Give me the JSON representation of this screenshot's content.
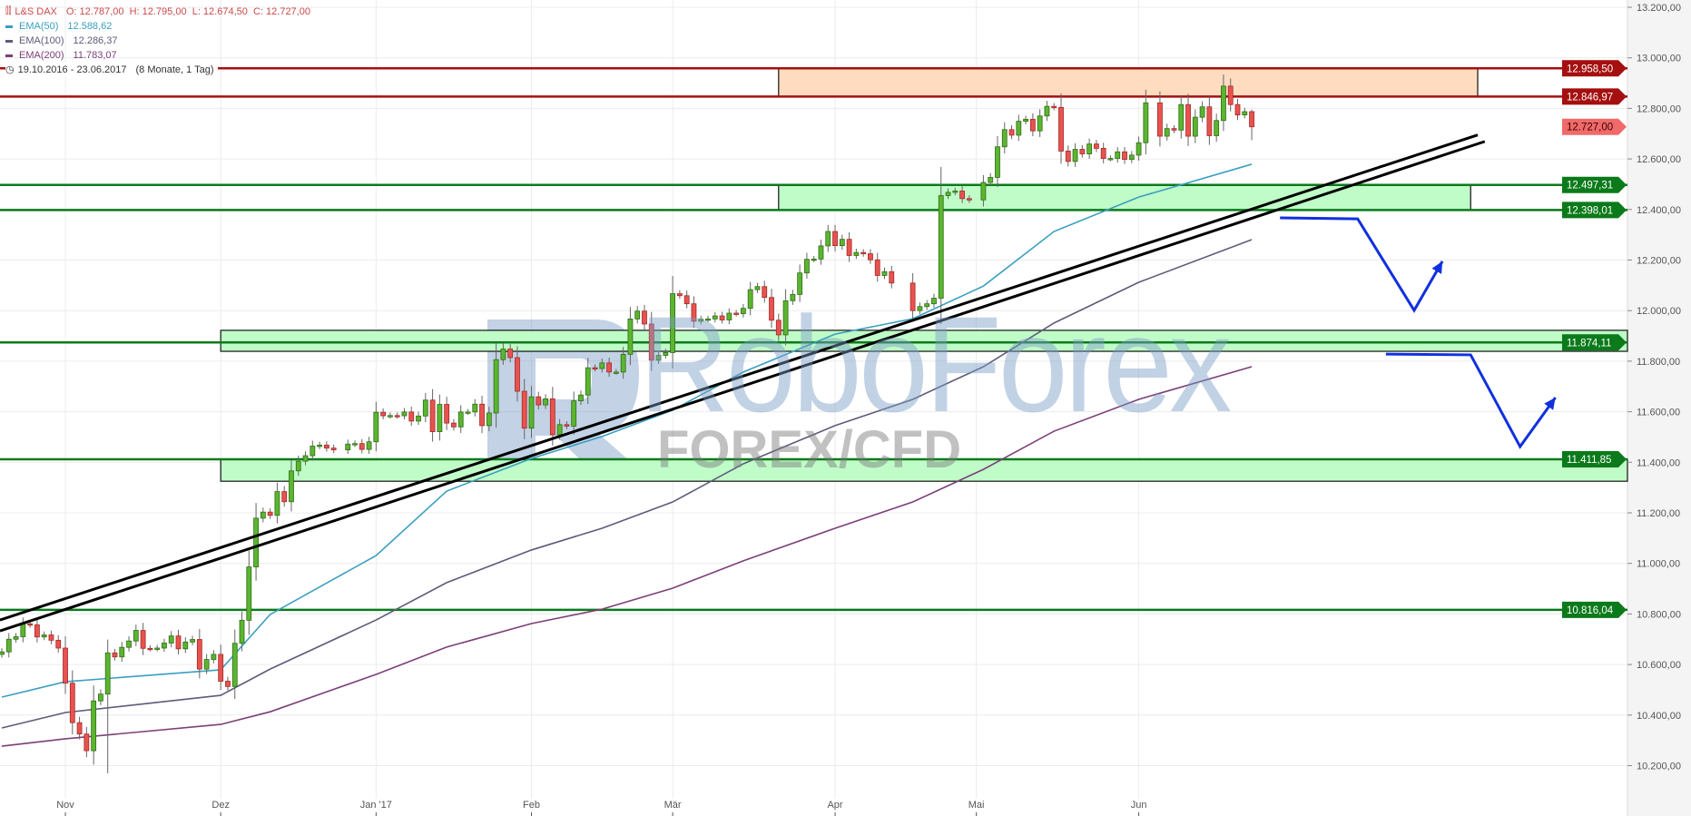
{
  "legend": {
    "instrument": "L&S DAX",
    "ohlc": "O: 12.787,00  H: 12.795,00  L: 12.674,50  C: 12.727,00",
    "range": "19.10.2016 - 23.06.2017",
    "range_note": "(8 Monate, 1 Tag)",
    "title_color": "#cc4a4a"
  },
  "watermark": {
    "brand": "RoboForex",
    "tagline": "FOREX/CFD"
  },
  "chart_data": {
    "type": "candlestick",
    "title": "L&S DAX",
    "ylim": [
      10000,
      13250
    ],
    "yticks": [
      13200,
      13000,
      12800,
      12600,
      12400,
      12200,
      12000,
      11800,
      11600,
      11400,
      11200,
      11000,
      10800,
      10600,
      10400,
      10200
    ],
    "ytick_labels": [
      "13.200,00",
      "13.000,00",
      "12.800,00",
      "12.600,00",
      "12.400,00",
      "12.200,00",
      "12.000,00",
      "11.800,00",
      "11.600,00",
      "11.400,00",
      "11.200,00",
      "11.000,00",
      "10.800,00",
      "10.600,00",
      "10.400,00",
      "10.200,00"
    ],
    "xticks": [
      {
        "date": "2016-11-01",
        "label": "Nov"
      },
      {
        "date": "2016-12-01",
        "label": "Dez"
      },
      {
        "date": "2017-01-02",
        "label": "Jan '17"
      },
      {
        "date": "2017-02-01",
        "label": "Feb"
      },
      {
        "date": "2017-03-01",
        "label": "Mär"
      },
      {
        "date": "2017-04-03",
        "label": "Apr"
      },
      {
        "date": "2017-05-01",
        "label": "Mai"
      },
      {
        "date": "2017-06-01",
        "label": "Jun"
      }
    ],
    "grid": true,
    "colors": {
      "up": "#5cb531",
      "down": "#e8534f"
    },
    "last_candle": {
      "open": 12787.0,
      "high": 12795.0,
      "low": 12674.5,
      "close": 12727.0
    },
    "candles": [
      [
        "2016-10-19",
        10650
      ],
      [
        "2016-10-20",
        10700
      ],
      [
        "2016-10-21",
        10710
      ],
      [
        "2016-10-24",
        10761
      ],
      [
        "2016-10-25",
        10757
      ],
      [
        "2016-10-26",
        10709
      ],
      [
        "2016-10-27",
        10717
      ],
      [
        "2016-10-28",
        10696
      ],
      [
        "2016-10-31",
        10665
      ],
      [
        "2016-11-01",
        10526
      ],
      [
        "2016-11-02",
        10370
      ],
      [
        "2016-11-03",
        10325
      ],
      [
        "2016-11-04",
        10259
      ],
      [
        "2016-11-07",
        10456
      ],
      [
        "2016-11-08",
        10483
      ],
      [
        "2016-11-09",
        10646
      ],
      [
        "2016-11-10",
        10630
      ],
      [
        "2016-11-11",
        10668
      ],
      [
        "2016-11-14",
        10693
      ],
      [
        "2016-11-15",
        10735
      ],
      [
        "2016-11-16",
        10664
      ],
      [
        "2016-11-17",
        10663
      ],
      [
        "2016-11-18",
        10665
      ],
      [
        "2016-11-21",
        10685
      ],
      [
        "2016-11-22",
        10713
      ],
      [
        "2016-11-23",
        10662
      ],
      [
        "2016-11-24",
        10689
      ],
      [
        "2016-11-25",
        10699
      ],
      [
        "2016-11-28",
        10582
      ],
      [
        "2016-11-29",
        10620
      ],
      [
        "2016-11-30",
        10640
      ],
      [
        "2016-12-01",
        10534
      ],
      [
        "2016-12-02",
        10513
      ],
      [
        "2016-12-05",
        10684
      ],
      [
        "2016-12-06",
        10775
      ],
      [
        "2016-12-07",
        10986
      ],
      [
        "2016-12-08",
        11179
      ],
      [
        "2016-12-09",
        11203
      ],
      [
        "2016-12-12",
        11190
      ],
      [
        "2016-12-13",
        11284
      ],
      [
        "2016-12-14",
        11244
      ],
      [
        "2016-12-15",
        11366
      ],
      [
        "2016-12-16",
        11404
      ],
      [
        "2016-12-19",
        11426
      ],
      [
        "2016-12-20",
        11464
      ],
      [
        "2016-12-21",
        11468
      ],
      [
        "2016-12-22",
        11456
      ],
      [
        "2016-12-23",
        11449
      ],
      [
        "2016-12-27",
        11472
      ],
      [
        "2016-12-28",
        11474
      ],
      [
        "2016-12-29",
        11451
      ],
      [
        "2016-12-30",
        11481
      ],
      [
        "2017-01-02",
        11598
      ],
      [
        "2017-01-03",
        11584
      ],
      [
        "2017-01-04",
        11585
      ],
      [
        "2017-01-05",
        11584
      ],
      [
        "2017-01-06",
        11599
      ],
      [
        "2017-01-09",
        11563
      ],
      [
        "2017-01-10",
        11583
      ],
      [
        "2017-01-11",
        11646
      ],
      [
        "2017-01-12",
        11521
      ],
      [
        "2017-01-13",
        11629
      ],
      [
        "2017-01-16",
        11555
      ],
      [
        "2017-01-17",
        11540
      ],
      [
        "2017-01-18",
        11599
      ],
      [
        "2017-01-19",
        11599
      ],
      [
        "2017-01-20",
        11630
      ],
      [
        "2017-01-23",
        11545
      ],
      [
        "2017-01-24",
        11595
      ],
      [
        "2017-01-25",
        11806
      ],
      [
        "2017-01-26",
        11848
      ],
      [
        "2017-01-27",
        11814
      ],
      [
        "2017-01-30",
        11681
      ],
      [
        "2017-01-31",
        11535
      ],
      [
        "2017-02-01",
        11659
      ],
      [
        "2017-02-02",
        11627
      ],
      [
        "2017-02-03",
        11651
      ],
      [
        "2017-02-06",
        11509
      ],
      [
        "2017-02-07",
        11549
      ],
      [
        "2017-02-08",
        11543
      ],
      [
        "2017-02-09",
        11643
      ],
      [
        "2017-02-10",
        11666
      ],
      [
        "2017-02-13",
        11774
      ],
      [
        "2017-02-14",
        11771
      ],
      [
        "2017-02-15",
        11793
      ],
      [
        "2017-02-16",
        11757
      ],
      [
        "2017-02-17",
        11757
      ],
      [
        "2017-02-20",
        11827
      ],
      [
        "2017-02-21",
        11967
      ],
      [
        "2017-02-22",
        11998
      ],
      [
        "2017-02-23",
        11947
      ],
      [
        "2017-02-24",
        11804
      ],
      [
        "2017-02-27",
        11823
      ],
      [
        "2017-02-28",
        11834
      ],
      [
        "2017-03-01",
        12067
      ],
      [
        "2017-03-02",
        12059
      ],
      [
        "2017-03-03",
        12027
      ],
      [
        "2017-03-06",
        11958
      ],
      [
        "2017-03-07",
        11966
      ],
      [
        "2017-03-08",
        11967
      ],
      [
        "2017-03-09",
        11979
      ],
      [
        "2017-03-10",
        11963
      ],
      [
        "2017-03-13",
        11990
      ],
      [
        "2017-03-14",
        11988
      ],
      [
        "2017-03-15",
        12009
      ],
      [
        "2017-03-16",
        12083
      ],
      [
        "2017-03-17",
        12095
      ],
      [
        "2017-03-20",
        12052
      ],
      [
        "2017-03-21",
        11962
      ],
      [
        "2017-03-22",
        11904
      ],
      [
        "2017-03-23",
        12039
      ],
      [
        "2017-03-24",
        12064
      ],
      [
        "2017-03-27",
        12149
      ],
      [
        "2017-03-28",
        12203
      ],
      [
        "2017-03-29",
        12204
      ],
      [
        "2017-03-30",
        12256
      ],
      [
        "2017-03-31",
        12313
      ],
      [
        "2017-04-03",
        12257
      ],
      [
        "2017-04-04",
        12282
      ],
      [
        "2017-04-05",
        12218
      ],
      [
        "2017-04-06",
        12230
      ],
      [
        "2017-04-07",
        12225
      ],
      [
        "2017-04-10",
        12201
      ],
      [
        "2017-04-11",
        12139
      ],
      [
        "2017-04-12",
        12154
      ],
      [
        "2017-04-13",
        12109
      ],
      [
        "2017-04-18",
        12000
      ],
      [
        "2017-04-19",
        12016
      ],
      [
        "2017-04-20",
        12027
      ],
      [
        "2017-04-21",
        12049
      ],
      [
        "2017-04-24",
        12455
      ],
      [
        "2017-04-25",
        12468
      ],
      [
        "2017-04-26",
        12473
      ],
      [
        "2017-04-27",
        12443
      ],
      [
        "2017-04-28",
        12438
      ],
      [
        "2017-05-02",
        12507
      ],
      [
        "2017-05-03",
        12527
      ],
      [
        "2017-05-04",
        12648
      ],
      [
        "2017-05-05",
        12716
      ],
      [
        "2017-05-08",
        12694
      ],
      [
        "2017-05-09",
        12749
      ],
      [
        "2017-05-10",
        12757
      ],
      [
        "2017-05-11",
        12711
      ],
      [
        "2017-05-12",
        12770
      ],
      [
        "2017-05-15",
        12808
      ],
      [
        "2017-05-16",
        12804
      ],
      [
        "2017-05-17",
        12631
      ],
      [
        "2017-05-18",
        12590
      ],
      [
        "2017-05-19",
        12638
      ],
      [
        "2017-05-22",
        12620
      ],
      [
        "2017-05-23",
        12659
      ],
      [
        "2017-05-24",
        12642
      ],
      [
        "2017-05-25",
        12602
      ],
      [
        "2017-05-26",
        12602
      ],
      [
        "2017-05-29",
        12628
      ],
      [
        "2017-05-30",
        12598
      ],
      [
        "2017-05-31",
        12615
      ],
      [
        "2017-06-01",
        12664
      ],
      [
        "2017-06-02",
        12822
      ],
      [
        "2017-06-06",
        12690
      ],
      [
        "2017-06-07",
        12720
      ],
      [
        "2017-06-08",
        12714
      ],
      [
        "2017-06-09",
        12815
      ],
      [
        "2017-06-12",
        12690
      ],
      [
        "2017-06-13",
        12765
      ],
      [
        "2017-06-14",
        12806
      ],
      [
        "2017-06-15",
        12692
      ],
      [
        "2017-06-16",
        12752
      ],
      [
        "2017-06-19",
        12888
      ],
      [
        "2017-06-20",
        12815
      ],
      [
        "2017-06-21",
        12774
      ],
      [
        "2017-06-22",
        12787
      ],
      [
        "2017-06-23",
        12727
      ]
    ],
    "ema": [
      {
        "name": "EMA(50)",
        "value": "12.588,62",
        "color": "#3a9fc0",
        "points": [
          [
            "2016-10-19",
            10471
          ],
          [
            "2016-11-01",
            10532
          ],
          [
            "2016-12-01",
            10579
          ],
          [
            "2016-12-12",
            10798
          ],
          [
            "2017-01-02",
            11031
          ],
          [
            "2017-01-16",
            11286
          ],
          [
            "2017-02-01",
            11415
          ],
          [
            "2017-02-15",
            11502
          ],
          [
            "2017-03-01",
            11606
          ],
          [
            "2017-03-15",
            11757
          ],
          [
            "2017-04-03",
            11907
          ],
          [
            "2017-04-18",
            11968
          ],
          [
            "2017-05-02",
            12097
          ],
          [
            "2017-05-16",
            12313
          ],
          [
            "2017-06-01",
            12449
          ],
          [
            "2017-06-23",
            12579
          ]
        ]
      },
      {
        "name": "EMA(100)",
        "value": "12.286,37",
        "color": "#5c5c7a",
        "points": [
          [
            "2016-10-19",
            10349
          ],
          [
            "2016-11-01",
            10410
          ],
          [
            "2016-12-01",
            10478
          ],
          [
            "2016-12-12",
            10582
          ],
          [
            "2017-01-02",
            10776
          ],
          [
            "2017-01-16",
            10924
          ],
          [
            "2017-02-01",
            11053
          ],
          [
            "2017-02-15",
            11139
          ],
          [
            "2017-03-01",
            11243
          ],
          [
            "2017-03-15",
            11394
          ],
          [
            "2017-04-03",
            11545
          ],
          [
            "2017-04-18",
            11649
          ],
          [
            "2017-05-02",
            11778
          ],
          [
            "2017-05-16",
            11951
          ],
          [
            "2017-06-01",
            12112
          ],
          [
            "2017-06-23",
            12281
          ]
        ]
      },
      {
        "name": "EMA(200)",
        "value": "11.783,07",
        "color": "#7b3f78",
        "points": [
          [
            "2016-10-19",
            10277
          ],
          [
            "2016-11-01",
            10306
          ],
          [
            "2016-12-01",
            10363
          ],
          [
            "2016-12-12",
            10413
          ],
          [
            "2017-01-02",
            10561
          ],
          [
            "2017-01-16",
            10669
          ],
          [
            "2017-02-01",
            10762
          ],
          [
            "2017-02-15",
            10819
          ],
          [
            "2017-03-01",
            10902
          ],
          [
            "2017-03-15",
            11010
          ],
          [
            "2017-04-03",
            11139
          ],
          [
            "2017-04-18",
            11243
          ],
          [
            "2017-05-02",
            11372
          ],
          [
            "2017-05-16",
            11523
          ],
          [
            "2017-06-01",
            11649
          ],
          [
            "2017-06-23",
            11778
          ]
        ]
      }
    ],
    "levels": [
      {
        "value": 12958.5,
        "label": "12.958,50",
        "color": "#a50f0f",
        "text": "#ffffff"
      },
      {
        "value": 12846.97,
        "label": "12.846,97",
        "color": "#a50f0f",
        "text": "#ffffff"
      },
      {
        "value": 12497.31,
        "label": "12.497,31",
        "color": "#0b7a1a",
        "text": "#ffffff"
      },
      {
        "value": 12398.01,
        "label": "12.398,01",
        "color": "#0b7a1a",
        "text": "#ffffff"
      },
      {
        "value": 11874.11,
        "label": "11.874,11",
        "color": "#0b7a1a",
        "text": "#ffffff"
      },
      {
        "value": 11411.85,
        "label": "11.411,85",
        "color": "#0b7a1a",
        "text": "#ffffff"
      },
      {
        "value": 10816.04,
        "label": "10.816,04",
        "color": "#0b7a1a",
        "text": "#ffffff"
      }
    ],
    "current_price": {
      "value": 12727.0,
      "label": "12.727,00",
      "color": "#f06a6a",
      "text": "#3a0000"
    },
    "zones": [
      {
        "from": "2017-03-22",
        "to": "2017-08-08",
        "top": 12958.5,
        "bottom": 12846.97,
        "color": "#ffdcbf"
      },
      {
        "from": "2017-03-22",
        "to": "2017-08-07",
        "top": 12497.31,
        "bottom": 12398.01,
        "color": "#c0fcc8"
      },
      {
        "from": "2016-12-01",
        "to": null,
        "top": 11922,
        "bottom": 11839,
        "color": "#c0fcc8"
      },
      {
        "from": "2016-12-01",
        "to": null,
        "top": 11411.85,
        "bottom": 11325,
        "color": "#c0fcc8"
      }
    ],
    "trendlines": [
      [
        [
          "2016-10-19",
          10776
        ],
        [
          "2017-08-08",
          12695
        ]
      ],
      [
        [
          "2016-10-19",
          10733
        ],
        [
          "2017-08-09",
          12669
        ]
      ]
    ],
    "projections": [
      {
        "color": "#1030e0",
        "points": [
          [
            "2017-06-29",
            12367
          ],
          [
            "2017-07-14",
            12363
          ],
          [
            "2017-07-26",
            12001
          ],
          [
            "2017-08-01",
            12195
          ]
        ]
      },
      {
        "color": "#1030e0",
        "points": [
          [
            "2017-07-20",
            11828
          ],
          [
            "2017-08-07",
            11825
          ],
          [
            "2017-08-16",
            11462
          ],
          [
            "2017-08-23",
            11656
          ]
        ]
      }
    ]
  }
}
